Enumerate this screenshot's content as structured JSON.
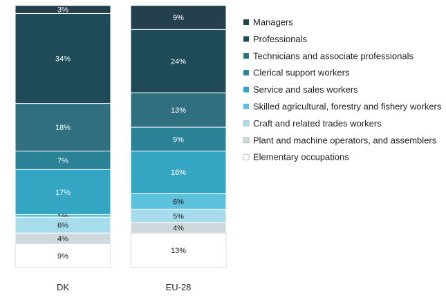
{
  "chart_data": {
    "type": "bar",
    "stacked": true,
    "orientation": "vertical",
    "categories": [
      "DK",
      "EU-28"
    ],
    "series": [
      {
        "name": "Managers",
        "values": [
          3,
          9
        ],
        "color": "#24404c"
      },
      {
        "name": "Professionals",
        "values": [
          34,
          24
        ],
        "color": "#1f4b59"
      },
      {
        "name": "Technicians and associate professionals",
        "values": [
          18,
          13
        ],
        "color": "#2f6f80"
      },
      {
        "name": "Clerical support workers",
        "values": [
          7,
          9
        ],
        "color": "#2a8297"
      },
      {
        "name": "Service and sales workers",
        "values": [
          17,
          16
        ],
        "color": "#34a6c4"
      },
      {
        "name": "Skilled agricultural, forestry and fishery workers",
        "values": [
          1,
          6
        ],
        "color": "#5cc1db"
      },
      {
        "name": "Craft and related trades workers",
        "values": [
          6,
          5
        ],
        "color": "#a6dcec"
      },
      {
        "name": "Plant and machine operators, and assemblers",
        "values": [
          4,
          4
        ],
        "color": "#cfd8dc"
      },
      {
        "name": "Elementary occupations",
        "values": [
          9,
          13
        ],
        "color": "#ffffff"
      }
    ],
    "value_labels": [
      [
        "3%",
        "34%",
        "18%",
        "7%",
        "17%",
        "1%",
        "6%",
        "4%",
        "9%"
      ],
      [
        "9%",
        "24%",
        "13%",
        "9%",
        "16%",
        "6%",
        "5%",
        "4%",
        "13%"
      ]
    ],
    "unit": "%",
    "legend_position": "right",
    "legend_order": "top-to-bottom matches stack top-to-bottom",
    "grid": false,
    "axes_visible": false,
    "title": "",
    "xlabel": "",
    "ylabel": ""
  }
}
